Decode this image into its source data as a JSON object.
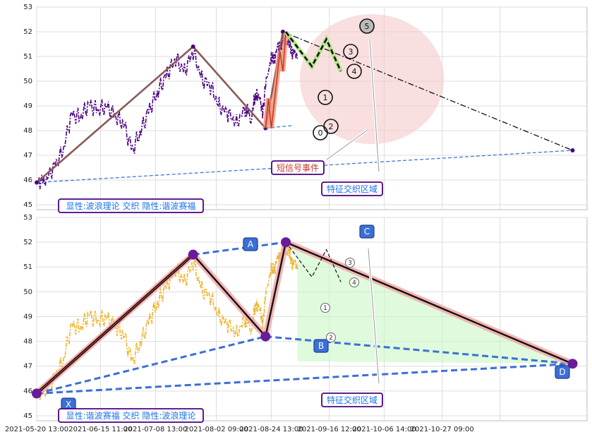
{
  "chart_data": [
    {
      "type": "line",
      "ylim": [
        44.8,
        53
      ],
      "yticks": [
        "45",
        "46",
        "47",
        "48",
        "49",
        "50",
        "51",
        "52",
        "53"
      ],
      "annotations": {
        "short_signal_event": "短信号事件",
        "feature_zone": "特征交织区域",
        "legend_box": "显性:波浪理论 交织 隐性:谐波赛福"
      },
      "wave_labels": [
        "0",
        "1",
        "2",
        "3",
        "4",
        "5"
      ],
      "price_series": [
        [
          0.5,
          46.0
        ],
        [
          3,
          45.9
        ],
        [
          6,
          46.6
        ],
        [
          9,
          47.1
        ],
        [
          12,
          48.7
        ],
        [
          15,
          48.5
        ],
        [
          18,
          49.1
        ],
        [
          21,
          48.8
        ],
        [
          24,
          49.0
        ],
        [
          27,
          48.6
        ],
        [
          30,
          48.3
        ],
        [
          33,
          47.2
        ],
        [
          36,
          48.0
        ],
        [
          39,
          48.9
        ],
        [
          42,
          49.6
        ],
        [
          45,
          50.3
        ],
        [
          48,
          50.9
        ],
        [
          51,
          50.4
        ],
        [
          54,
          51.2
        ],
        [
          57,
          50.1
        ],
        [
          60,
          49.8
        ],
        [
          63,
          49.0
        ],
        [
          66,
          48.7
        ],
        [
          69,
          48.3
        ],
        [
          72,
          48.9
        ],
        [
          74,
          48.5
        ],
        [
          76,
          49.6
        ],
        [
          78,
          48.8
        ],
        [
          80,
          50.6
        ],
        [
          82,
          51.0
        ],
        [
          84,
          51.5
        ],
        [
          86,
          51.7
        ],
        [
          88,
          51.3
        ],
        [
          90,
          50.9
        ]
      ],
      "elliott_wave_points": [
        [
          0,
          45.9
        ],
        [
          54,
          51.4
        ],
        [
          79,
          48.1
        ],
        [
          85,
          52.0
        ]
      ],
      "wave_small": [
        [
          79,
          48.1
        ],
        [
          80,
          49.3
        ],
        [
          81,
          48.1
        ],
        [
          84,
          51.2
        ],
        [
          85,
          50.4
        ],
        [
          86,
          52.0
        ]
      ],
      "projection_line": [
        [
          85,
          52.0
        ],
        [
          185,
          47.2
        ]
      ],
      "support_line": [
        [
          0,
          45.9
        ],
        [
          185,
          47.2
        ]
      ],
      "support_line2": [
        [
          79,
          48.1
        ],
        [
          88,
          48.2
        ]
      ],
      "forecast_zigzag": [
        [
          86,
          52.0
        ],
        [
          95,
          50.6
        ],
        [
          100,
          51.7
        ],
        [
          105,
          50.4
        ]
      ]
    },
    {
      "type": "line",
      "ylim": [
        44.8,
        53
      ],
      "yticks": [
        "45",
        "46",
        "47",
        "48",
        "49",
        "50",
        "51",
        "52",
        "53"
      ],
      "xticks": [
        "2021-05-20 13:00",
        "2021-06-15 11:00",
        "2021-07-08 13:00",
        "2021-08-02 09:00",
        "2021-08-24 13:00",
        "2021-09-16 12:00",
        "2021-10-06 14:00",
        "2021-10-27 09:00"
      ],
      "pattern_points": {
        "X": [
          0,
          45.9
        ],
        "A": [
          54,
          51.5
        ],
        "B": [
          79,
          48.2
        ],
        "C": [
          86,
          52.0
        ],
        "D": [
          185,
          47.1
        ]
      },
      "wave_labels": [
        "1",
        "2",
        "3",
        "4"
      ],
      "annotations": {
        "feature_zone": "特征交织区域",
        "legend_box": "显性:谐波赛福 交织 隐性:波浪理论"
      }
    }
  ],
  "colors": {
    "price1": "#4b0082",
    "price2": "#f0b32c",
    "wave_line": "#8b5a5a",
    "pattern_line": "#3c6fd6",
    "label_box_bg": "#3c6fd6",
    "ellipse": "#f4c4c4",
    "green_zone": "#c9f7c4"
  }
}
